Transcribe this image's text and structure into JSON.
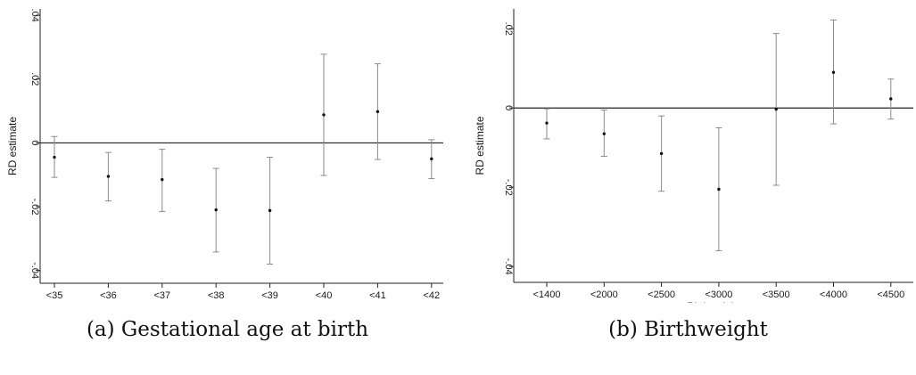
{
  "chart_data": [
    {
      "type": "scatter",
      "subtype": "point-estimates-with-confidence-intervals",
      "caption": "(a) Gestational age at birth",
      "xlabel": "Gestational age at birth",
      "ylabel": "RD estimate",
      "categories": [
        "<35",
        "<36",
        "<37",
        "<38",
        "<39",
        "<40",
        "<41",
        "<42"
      ],
      "estimates": [
        -0.0045,
        -0.0105,
        -0.0115,
        -0.021,
        -0.0212,
        0.0088,
        0.0098,
        -0.005
      ],
      "ci_lower": [
        -0.0108,
        -0.0182,
        -0.0215,
        -0.0342,
        -0.038,
        -0.0102,
        -0.0052,
        -0.0112
      ],
      "ci_upper": [
        0.002,
        -0.003,
        -0.002,
        -0.008,
        -0.0045,
        0.0278,
        0.0248,
        0.001
      ],
      "ylim": [
        -0.044,
        0.042
      ],
      "yticks": [
        -0.04,
        -0.02,
        0,
        0.02,
        0.04
      ],
      "ytick_labels": [
        "-.04",
        "-.02",
        "0",
        ".02",
        ".04"
      ],
      "reference_line": 0,
      "grid": false
    },
    {
      "type": "scatter",
      "subtype": "point-estimates-with-confidence-intervals",
      "caption": "(b) Birthweight",
      "xlabel": "Birthweight",
      "ylabel": "RD estimate",
      "categories": [
        "<1400",
        "<2000",
        "<2500",
        "<3000",
        "<3500",
        "<4000",
        "<4500"
      ],
      "estimates": [
        -0.0038,
        -0.0065,
        -0.0115,
        -0.0205,
        -0.0003,
        0.009,
        0.0023
      ],
      "ci_lower": [
        -0.0078,
        -0.0122,
        -0.021,
        -0.036,
        -0.0195,
        -0.004,
        -0.0028
      ],
      "ci_upper": [
        -0.0002,
        -0.0005,
        -0.002,
        -0.005,
        0.0188,
        0.0222,
        0.0073
      ],
      "ylim": [
        -0.044,
        0.025
      ],
      "yticks": [
        -0.04,
        -0.02,
        0,
        0.02
      ],
      "ytick_labels": [
        "-.04",
        "-.02",
        "0",
        ".02"
      ],
      "reference_line": 0,
      "grid": false
    }
  ]
}
